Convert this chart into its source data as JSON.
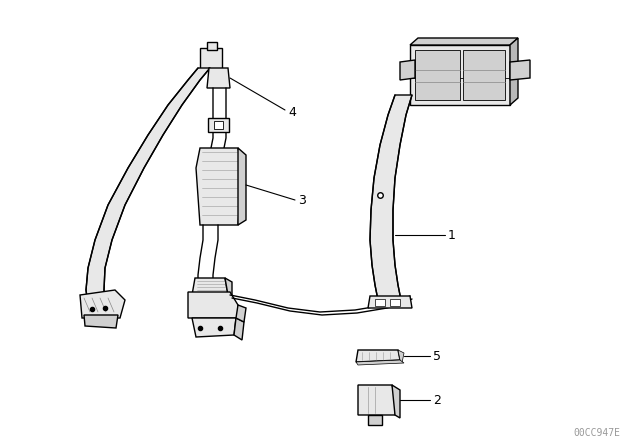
{
  "background_color": "#ffffff",
  "watermark_text": "00CC947E",
  "watermark_color": "#999999",
  "watermark_fontsize": 7,
  "label_color": "#000000",
  "line_color": "#000000",
  "fill_light": "#e8e8e8",
  "fill_mid": "#d0d0d0",
  "fill_dark": "#b8b8b8",
  "figsize": [
    6.4,
    4.48
  ],
  "dpi": 100
}
